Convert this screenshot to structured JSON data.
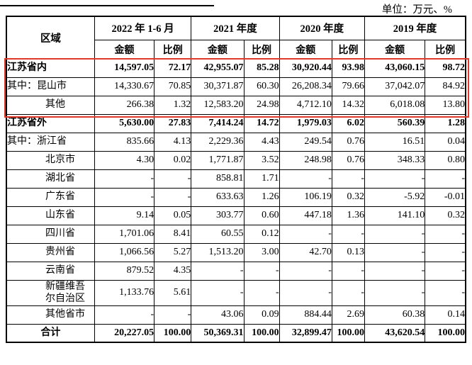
{
  "unit_label": "单位：万元、%",
  "table": {
    "region_header": "区域",
    "col_groups": [
      {
        "label": "2022 年 1-6 月",
        "sub": [
          "金额",
          "比例"
        ]
      },
      {
        "label": "2021 年度",
        "sub": [
          "金额",
          "比例"
        ]
      },
      {
        "label": "2020 年度",
        "sub": [
          "金额",
          "比例"
        ]
      },
      {
        "label": "2019 年度",
        "sub": [
          "金额",
          "比例"
        ]
      }
    ],
    "rows": [
      {
        "region": "江苏省内",
        "bold": true,
        "indent": false,
        "total": false,
        "values": [
          "14,597.05",
          "72.17",
          "42,955.07",
          "85.28",
          "30,920.44",
          "93.98",
          "43,060.15",
          "98.72"
        ]
      },
      {
        "region": "其中：昆山市",
        "bold": false,
        "indent": false,
        "total": false,
        "values": [
          "14,330.67",
          "70.85",
          "30,371.87",
          "60.30",
          "26,208.34",
          "79.66",
          "37,042.07",
          "84.92"
        ]
      },
      {
        "region": "其他",
        "bold": false,
        "indent": true,
        "total": false,
        "values": [
          "266.38",
          "1.32",
          "12,583.20",
          "24.98",
          "4,712.10",
          "14.32",
          "6,018.08",
          "13.80"
        ]
      },
      {
        "region": "江苏省外",
        "bold": true,
        "indent": false,
        "total": false,
        "values": [
          "5,630.00",
          "27.83",
          "7,414.24",
          "14.72",
          "1,979.03",
          "6.02",
          "560.39",
          "1.28"
        ]
      },
      {
        "region": "其中：浙江省",
        "bold": false,
        "indent": false,
        "total": false,
        "values": [
          "835.66",
          "4.13",
          "2,229.36",
          "4.43",
          "249.54",
          "0.76",
          "16.51",
          "0.04"
        ]
      },
      {
        "region": "北京市",
        "bold": false,
        "indent": true,
        "total": false,
        "values": [
          "4.30",
          "0.02",
          "1,771.87",
          "3.52",
          "248.98",
          "0.76",
          "348.33",
          "0.80"
        ]
      },
      {
        "region": "湖北省",
        "bold": false,
        "indent": true,
        "total": false,
        "values": [
          "-",
          "-",
          "858.81",
          "1.71",
          "-",
          "-",
          "-",
          "-"
        ]
      },
      {
        "region": "广东省",
        "bold": false,
        "indent": true,
        "total": false,
        "values": [
          "-",
          "-",
          "633.63",
          "1.26",
          "106.19",
          "0.32",
          "-5.92",
          "-0.01"
        ]
      },
      {
        "region": "山东省",
        "bold": false,
        "indent": true,
        "total": false,
        "values": [
          "9.14",
          "0.05",
          "303.77",
          "0.60",
          "447.18",
          "1.36",
          "141.10",
          "0.32"
        ]
      },
      {
        "region": "四川省",
        "bold": false,
        "indent": true,
        "total": false,
        "values": [
          "1,701.06",
          "8.41",
          "60.55",
          "0.12",
          "-",
          "-",
          "-",
          "-"
        ]
      },
      {
        "region": "贵州省",
        "bold": false,
        "indent": true,
        "total": false,
        "values": [
          "1,066.56",
          "5.27",
          "1,513.20",
          "3.00",
          "42.70",
          "0.13",
          "-",
          "-"
        ]
      },
      {
        "region": "云南省",
        "bold": false,
        "indent": true,
        "total": false,
        "values": [
          "879.52",
          "4.35",
          "-",
          "-",
          "-",
          "-",
          "-",
          "-"
        ]
      },
      {
        "region": "新疆维吾尔自治区",
        "bold": false,
        "indent": true,
        "total": false,
        "values": [
          "1,133.76",
          "5.61",
          "-",
          "-",
          "-",
          "-",
          "-",
          "-"
        ]
      },
      {
        "region": "其他省市",
        "bold": false,
        "indent": true,
        "total": false,
        "values": [
          "-",
          "-",
          "43.06",
          "0.09",
          "884.44",
          "2.69",
          "60.38",
          "0.14"
        ]
      },
      {
        "region": "合计",
        "bold": true,
        "indent": false,
        "total": true,
        "values": [
          "20,227.05",
          "100.00",
          "50,369.31",
          "100.00",
          "32,899.47",
          "100.00",
          "43,620.54",
          "100.00"
        ]
      }
    ]
  },
  "highlight": {
    "color": "#e0392b",
    "note_rows": "江苏省内 / 其中：昆山市 / 其他"
  }
}
